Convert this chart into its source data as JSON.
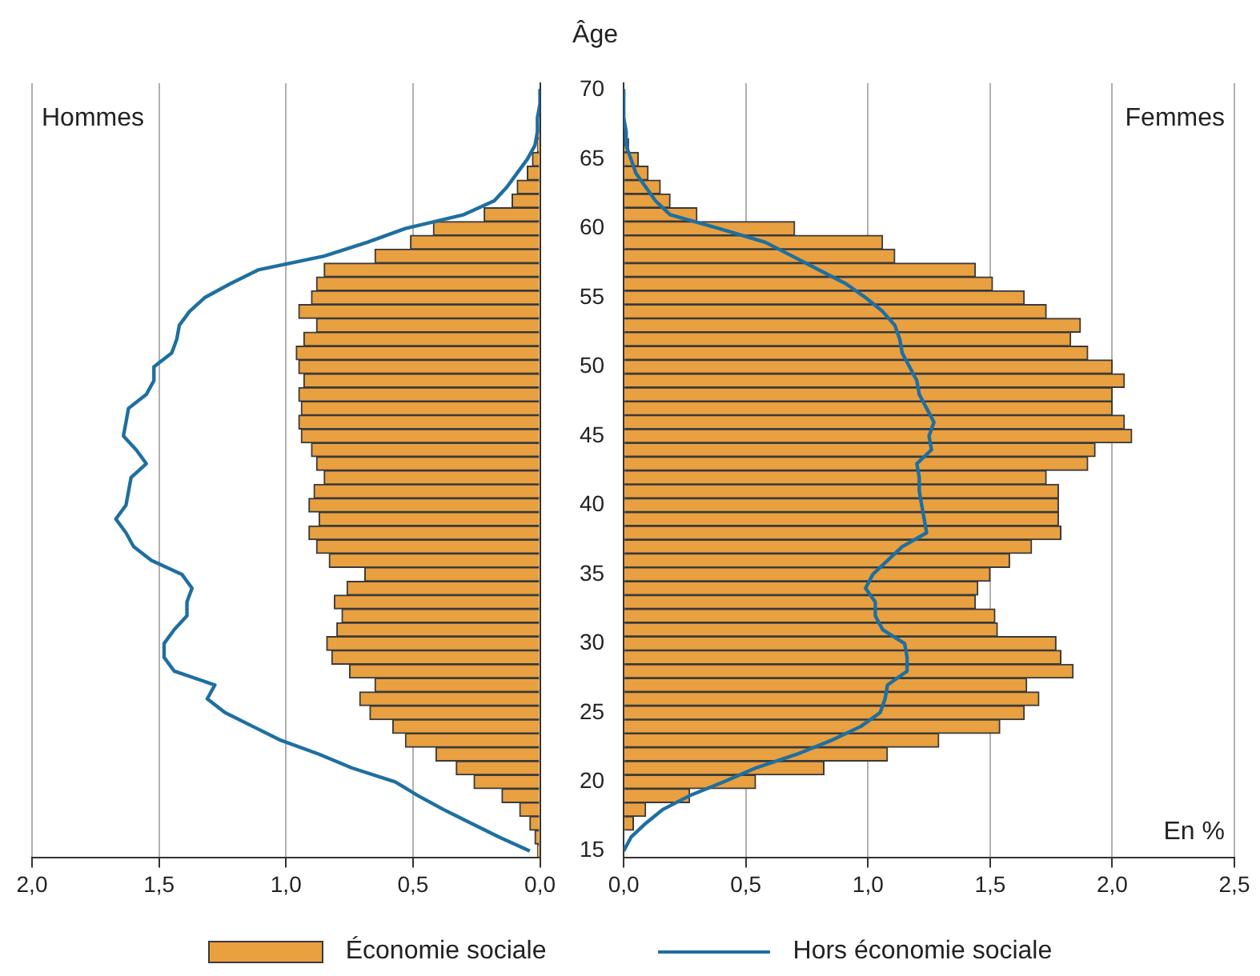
{
  "chart_data": [
    {
      "type": "bar",
      "orientation": "horizontal",
      "title": "Hommes",
      "categories": [
        "70",
        null,
        null,
        null,
        null,
        "65",
        null,
        null,
        null,
        null,
        "60",
        null,
        null,
        null,
        null,
        "55",
        null,
        null,
        null,
        null,
        "50",
        null,
        null,
        null,
        null,
        "45",
        null,
        null,
        null,
        null,
        "40",
        null,
        null,
        null,
        null,
        "35",
        null,
        null,
        null,
        null,
        "30",
        null,
        null,
        null,
        null,
        "25",
        null,
        null,
        null,
        null,
        "20",
        null,
        null,
        null,
        null,
        "15"
      ],
      "series": [
        {
          "name": "Économie sociale",
          "color": "#e8a040",
          "values": [
            0,
            0,
            null,
            0.01,
            0.01,
            0.03,
            0.05,
            0.09,
            0.11,
            0.22,
            0.42,
            0.51,
            0.65,
            0.85,
            0.88,
            0.9,
            0.95,
            0.88,
            0.93,
            0.96,
            0.95,
            0.93,
            0.95,
            0.94,
            0.95,
            0.94,
            0.9,
            0.88,
            0.85,
            0.89,
            0.91,
            0.87,
            0.91,
            0.88,
            0.83,
            0.69,
            0.76,
            0.81,
            0.78,
            0.8,
            0.84,
            0.82,
            0.75,
            0.65,
            0.71,
            0.67,
            0.58,
            0.53,
            0.41,
            0.33,
            0.26,
            0.15,
            0.08,
            0.04,
            0.02,
            0.01
          ]
        },
        {
          "name": "Hors économie sociale",
          "type": "line",
          "color": "#1f6fa0",
          "values": [
            0,
            0,
            0.01,
            0.01,
            0.02,
            0.05,
            0.09,
            0.13,
            0.18,
            0.3,
            0.53,
            0.68,
            0.85,
            1.11,
            1.22,
            1.32,
            1.38,
            1.42,
            1.43,
            1.45,
            1.52,
            1.52,
            1.55,
            1.62,
            1.63,
            1.64,
            1.59,
            1.55,
            1.61,
            1.62,
            1.63,
            1.67,
            1.63,
            1.6,
            1.53,
            1.41,
            1.37,
            1.39,
            1.39,
            1.44,
            1.48,
            1.48,
            1.44,
            1.28,
            1.31,
            1.24,
            1.13,
            1.02,
            0.87,
            0.74,
            0.57,
            0.48,
            0.38,
            0.27,
            0.16,
            0.04
          ]
        }
      ],
      "xlim": [
        2,
        0
      ],
      "xticks": [
        {
          "value": 2,
          "label": "2,0"
        },
        {
          "value": 1.5,
          "label": "1,5"
        },
        {
          "value": 1,
          "label": "1,0"
        },
        {
          "value": 0.5,
          "label": "0,5"
        },
        {
          "value": 0,
          "label": "0,0"
        }
      ],
      "grid": "x",
      "tick_labels": "x",
      "legend": "bottom"
    },
    {
      "type": "bar",
      "orientation": "horizontal",
      "title": "Femmes",
      "ylabel": "Âge",
      "xlabel": "En %",
      "categories": [
        "70",
        null,
        null,
        null,
        null,
        "65",
        null,
        null,
        null,
        null,
        "60",
        null,
        null,
        null,
        null,
        "55",
        null,
        null,
        null,
        null,
        "50",
        null,
        null,
        null,
        null,
        "45",
        null,
        null,
        null,
        null,
        "40",
        null,
        null,
        null,
        null,
        "35",
        null,
        null,
        null,
        null,
        "30",
        null,
        null,
        null,
        null,
        "25",
        null,
        null,
        null,
        null,
        "20",
        null,
        null,
        null,
        null,
        "15"
      ],
      "series": [
        {
          "color": "#e8a040",
          "values": [
            0,
            0,
            0,
            null,
            0.02,
            0.06,
            0.1,
            0.15,
            0.19,
            0.3,
            0.7,
            1.06,
            1.11,
            1.44,
            1.51,
            1.64,
            1.73,
            1.87,
            1.83,
            1.9,
            2.0,
            2.05,
            2.0,
            2.0,
            2.05,
            2.08,
            1.93,
            1.9,
            1.73,
            1.78,
            1.78,
            1.78,
            1.79,
            1.67,
            1.58,
            1.5,
            1.45,
            1.44,
            1.52,
            1.53,
            1.77,
            1.79,
            1.84,
            1.65,
            1.7,
            1.64,
            1.54,
            1.29,
            1.08,
            0.82,
            0.54,
            0.27,
            0.09,
            0.04,
            0,
            0
          ]
        },
        {
          "type": "line",
          "color": "#1f6fa0",
          "values": [
            0,
            0,
            0,
            0.01,
            0.01,
            0.03,
            0.05,
            0.09,
            0.13,
            0.19,
            0.39,
            0.58,
            0.69,
            0.8,
            0.91,
            0.99,
            1.06,
            1.11,
            1.13,
            1.14,
            1.17,
            1.2,
            1.21,
            1.24,
            1.27,
            1.25,
            1.26,
            1.2,
            1.21,
            1.21,
            1.22,
            1.23,
            1.24,
            1.14,
            1.08,
            1.02,
            0.99,
            1.03,
            1.03,
            1.06,
            1.15,
            1.16,
            1.16,
            1.08,
            1.07,
            1.05,
            0.97,
            0.85,
            0.71,
            0.54,
            0.41,
            0.27,
            0.16,
            0.09,
            0.03,
            0
          ]
        }
      ],
      "xlim": [
        0,
        2.5
      ],
      "xticks": [
        {
          "value": 0,
          "label": "0,0"
        },
        {
          "value": 0.5,
          "label": "0,5"
        },
        {
          "value": 1,
          "label": "1,0"
        },
        {
          "value": 1.5,
          "label": "1,5"
        },
        {
          "value": 2,
          "label": "2,0"
        },
        {
          "value": 2.5,
          "label": "2,5"
        }
      ],
      "grid": "x"
    }
  ]
}
